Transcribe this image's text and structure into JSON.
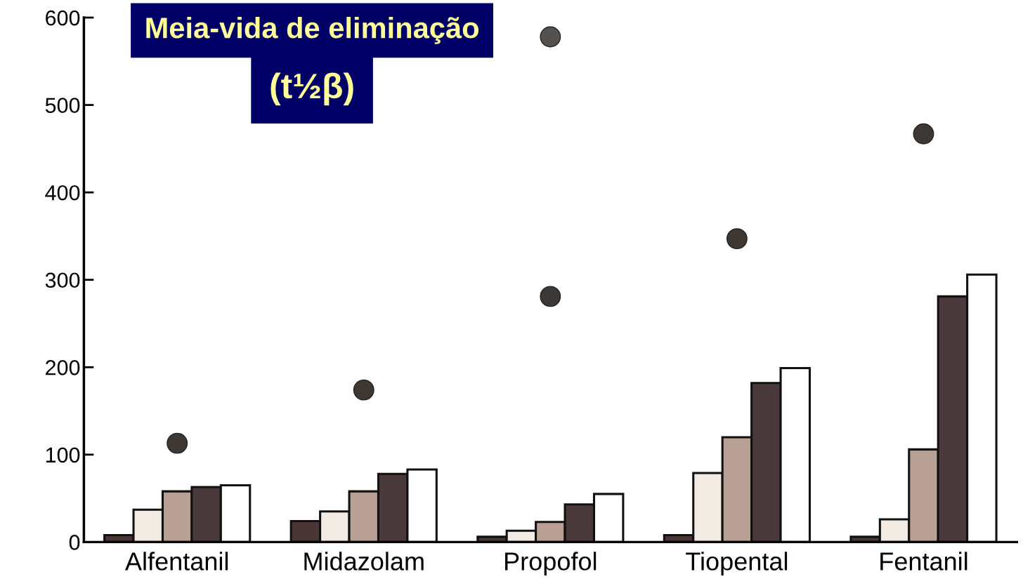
{
  "chart_data": {
    "type": "bar",
    "title": "Meia-vida de eliminação",
    "subtitle": "(t½β)",
    "categories": [
      "Alfentanil",
      "Midazolam",
      "Propofol",
      "Tiopental",
      "Fentanil"
    ],
    "series": [
      {
        "color": "#4a3535",
        "values": [
          8,
          24,
          6,
          8,
          6
        ]
      },
      {
        "color": "#f2ebe4",
        "values": [
          37,
          35,
          13,
          79,
          26
        ]
      },
      {
        "color": "#b8a095",
        "values": [
          58,
          58,
          23,
          120,
          106
        ]
      },
      {
        "color": "#4a3a3c",
        "values": [
          63,
          78,
          43,
          182,
          281
        ]
      },
      {
        "color": "#ffffff",
        "values": [
          65,
          83,
          55,
          199,
          306
        ]
      },
      {
        "type": "scatter",
        "color": "#3d3833",
        "x": [
          "Alfentanil",
          "Midazolam",
          "Propofol",
          "Tiopental",
          "Fentanil"
        ],
        "values": [
          113,
          174,
          281,
          347,
          467
        ]
      },
      {
        "type": "scatter",
        "color": "#55524d",
        "values": [
          null,
          null,
          578,
          null,
          null
        ]
      }
    ],
    "ylim": [
      0,
      600
    ],
    "yticks": [
      0,
      100,
      200,
      300,
      400,
      500,
      600
    ],
    "grid": false
  }
}
